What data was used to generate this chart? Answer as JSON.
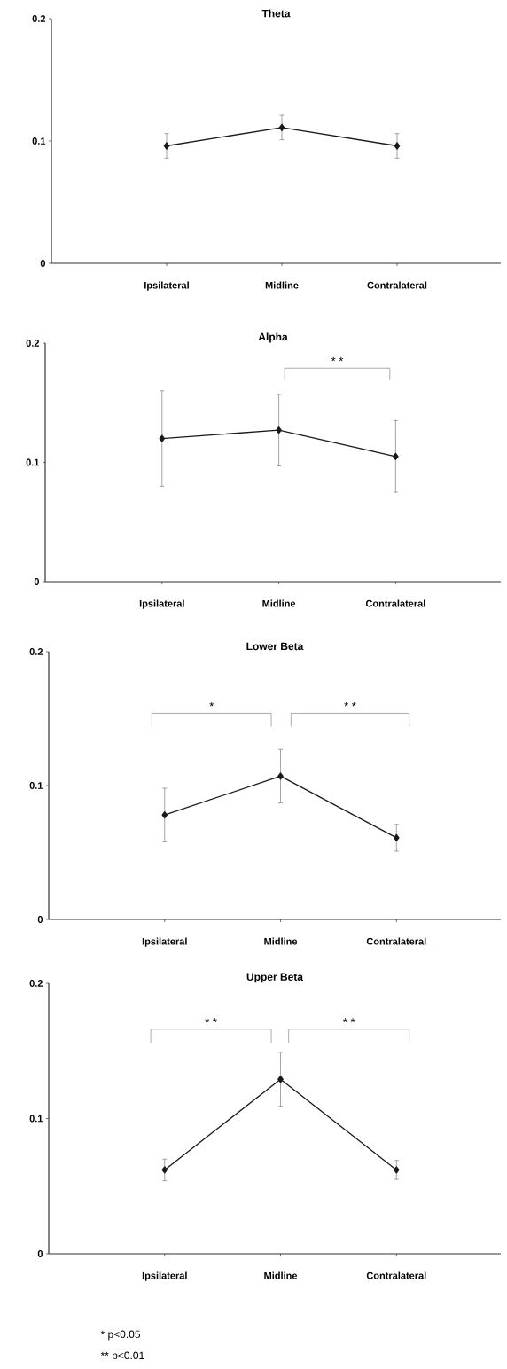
{
  "chart_data": [
    {
      "type": "line",
      "title": "Theta",
      "categories": [
        "Ipsilateral",
        "Midline",
        "Contralateral"
      ],
      "values": [
        0.096,
        0.111,
        0.096
      ],
      "errors": [
        0.01,
        0.01,
        0.01
      ],
      "color": "#1a1a1a",
      "marker": "diamond",
      "ylim": [
        0,
        0.2
      ],
      "yticks": [
        0,
        0.1,
        0.2
      ]
    },
    {
      "type": "line",
      "title": "Alpha",
      "categories": [
        "Ipsilateral",
        "Midline",
        "Contralateral"
      ],
      "values": [
        0.12,
        0.127,
        0.105
      ],
      "errors": [
        0.04,
        0.03,
        0.03
      ],
      "color": "#1a1a1a",
      "marker": "diamond",
      "ylim": [
        0,
        0.2
      ],
      "yticks": [
        0,
        0.1,
        0.2
      ],
      "annotations": [
        "* *"
      ]
    },
    {
      "type": "line",
      "title": "Lower Beta",
      "categories": [
        "Ipsilateral",
        "Midline",
        "Contralateral"
      ],
      "values": [
        0.078,
        0.107,
        0.061
      ],
      "errors": [
        0.02,
        0.02,
        0.01
      ],
      "color": "#1a1a1a",
      "marker": "diamond",
      "ylim": [
        0,
        0.2
      ],
      "yticks": [
        0,
        0.1,
        0.2
      ],
      "annotations": [
        "*",
        "* *"
      ]
    },
    {
      "type": "line",
      "title": "Upper Beta",
      "categories": [
        "Ipsilateral",
        "Midline",
        "Contralateral"
      ],
      "values": [
        0.062,
        0.129,
        0.062
      ],
      "errors": [
        0.008,
        0.02,
        0.007
      ],
      "color": "#1a1a1a",
      "marker": "diamond",
      "ylim": [
        0,
        0.2
      ],
      "yticks": [
        0,
        0.1,
        0.2
      ],
      "annotations": [
        "* *",
        "* *",
        "* p<0.05",
        "** p<0.01"
      ]
    }
  ]
}
